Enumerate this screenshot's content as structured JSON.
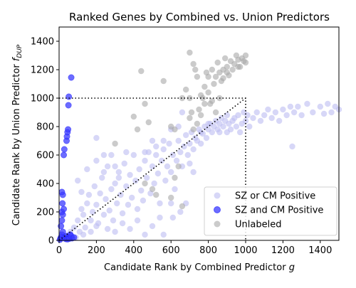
{
  "chart_data": {
    "type": "scatter",
    "title": "Ranked Genes by Combined vs. Union Predictors",
    "xlabel": "Candidate Rank by Combined Predictor g",
    "xlabel_text": "Candidate Rank by Combined Predictor ",
    "xlabel_var": "g",
    "ylabel": "Candidate Rank by Union Predictor f_DUP",
    "ylabel_text": "Candidate Rank by Union Predictor ",
    "ylabel_var": "f",
    "ylabel_sub": "DUP",
    "xlim": [
      0,
      1500
    ],
    "ylim": [
      0,
      1500
    ],
    "xticks": [
      0,
      200,
      400,
      600,
      800,
      1000,
      1200,
      1400
    ],
    "yticks": [
      0,
      200,
      400,
      600,
      800,
      1000,
      1200,
      1400
    ],
    "grid": false,
    "legend_position": "lower-right",
    "dotted_box": {
      "x": [
        0,
        1000
      ],
      "y": [
        0,
        1000
      ]
    },
    "dotted_diagonal": {
      "x": [
        0,
        1000
      ],
      "y": [
        0,
        1000
      ]
    },
    "series": [
      {
        "name": "SZ or CM Positive",
        "color": "#bcbcf2",
        "points": [
          [
            60,
            60
          ],
          [
            80,
            90
          ],
          [
            100,
            140
          ],
          [
            110,
            60
          ],
          [
            120,
            220
          ],
          [
            130,
            180
          ],
          [
            140,
            90
          ],
          [
            150,
            260
          ],
          [
            160,
            320
          ],
          [
            170,
            140
          ],
          [
            180,
            200
          ],
          [
            190,
            380
          ],
          [
            200,
            250
          ],
          [
            210,
            120
          ],
          [
            220,
            330
          ],
          [
            230,
            440
          ],
          [
            240,
            180
          ],
          [
            250,
            290
          ],
          [
            260,
            520
          ],
          [
            270,
            210
          ],
          [
            280,
            360
          ],
          [
            290,
            140
          ],
          [
            300,
            400
          ],
          [
            310,
            260
          ],
          [
            320,
            480
          ],
          [
            330,
            320
          ],
          [
            340,
            190
          ],
          [
            350,
            540
          ],
          [
            360,
            380
          ],
          [
            370,
            250
          ],
          [
            380,
            460
          ],
          [
            390,
            300
          ],
          [
            400,
            600
          ],
          [
            410,
            420
          ],
          [
            420,
            220
          ],
          [
            430,
            500
          ],
          [
            440,
            350
          ],
          [
            450,
            280
          ],
          [
            460,
            560
          ],
          [
            470,
            440
          ],
          [
            480,
            620
          ],
          [
            490,
            330
          ],
          [
            500,
            520
          ],
          [
            510,
            400
          ],
          [
            520,
            600
          ],
          [
            530,
            470
          ],
          [
            540,
            260
          ],
          [
            550,
            560
          ],
          [
            560,
            640
          ],
          [
            570,
            420
          ],
          [
            580,
            520
          ],
          [
            590,
            680
          ],
          [
            600,
            480
          ],
          [
            610,
            600
          ],
          [
            620,
            360
          ],
          [
            630,
            560
          ],
          [
            640,
            700
          ],
          [
            650,
            620
          ],
          [
            660,
            520
          ],
          [
            670,
            660
          ],
          [
            680,
            740
          ],
          [
            690,
            600
          ],
          [
            700,
            680
          ],
          [
            710,
            760
          ],
          [
            720,
            640
          ],
          [
            730,
            720
          ],
          [
            740,
            700
          ],
          [
            750,
            780
          ],
          [
            760,
            680
          ],
          [
            770,
            750
          ],
          [
            780,
            800
          ],
          [
            790,
            720
          ],
          [
            800,
            780
          ],
          [
            810,
            820
          ],
          [
            820,
            760
          ],
          [
            830,
            800
          ],
          [
            840,
            840
          ],
          [
            850,
            780
          ],
          [
            860,
            820
          ],
          [
            870,
            860
          ],
          [
            880,
            800
          ],
          [
            890,
            840
          ],
          [
            900,
            880
          ],
          [
            910,
            820
          ],
          [
            920,
            780
          ],
          [
            930,
            840
          ],
          [
            940,
            860
          ],
          [
            950,
            800
          ],
          [
            960,
            880
          ],
          [
            970,
            760
          ],
          [
            980,
            820
          ],
          [
            990,
            900
          ],
          [
            1000,
            840
          ],
          [
            1010,
            880
          ],
          [
            1020,
            800
          ],
          [
            1040,
            860
          ],
          [
            1060,
            900
          ],
          [
            1080,
            840
          ],
          [
            1100,
            880
          ],
          [
            1120,
            920
          ],
          [
            1140,
            860
          ],
          [
            1160,
            900
          ],
          [
            1180,
            840
          ],
          [
            1200,
            920
          ],
          [
            1220,
            880
          ],
          [
            1240,
            940
          ],
          [
            1250,
            660
          ],
          [
            1260,
            900
          ],
          [
            1280,
            940
          ],
          [
            1300,
            880
          ],
          [
            1330,
            960
          ],
          [
            1360,
            900
          ],
          [
            1400,
            940
          ],
          [
            1420,
            890
          ],
          [
            1440,
            960
          ],
          [
            1460,
            900
          ],
          [
            1480,
            940
          ],
          [
            1500,
            920
          ],
          [
            40,
            30
          ],
          [
            90,
            20
          ],
          [
            130,
            40
          ],
          [
            170,
            60
          ],
          [
            200,
            100
          ],
          [
            260,
            80
          ],
          [
            300,
            60
          ],
          [
            340,
            120
          ],
          [
            380,
            80
          ],
          [
            420,
            140
          ],
          [
            460,
            40
          ],
          [
            500,
            100
          ],
          [
            540,
            160
          ],
          [
            560,
            40
          ],
          [
            600,
            260
          ],
          [
            610,
            160
          ],
          [
            650,
            200
          ],
          [
            680,
            260
          ],
          [
            200,
            560
          ],
          [
            240,
            600
          ],
          [
            280,
            600
          ],
          [
            240,
            480
          ],
          [
            300,
            520
          ],
          [
            360,
            620
          ],
          [
            320,
            440
          ],
          [
            150,
            500
          ],
          [
            100,
            420
          ],
          [
            120,
            340
          ],
          [
            600,
            780
          ],
          [
            640,
            800
          ],
          [
            660,
            900
          ],
          [
            560,
            700
          ],
          [
            520,
            660
          ],
          [
            500,
            700
          ],
          [
            460,
            620
          ],
          [
            720,
            480
          ],
          [
            700,
            540
          ],
          [
            200,
            720
          ],
          [
            760,
            760
          ],
          [
            800,
            820
          ],
          [
            860,
            760
          ],
          [
            900,
            760
          ]
        ]
      },
      {
        "name": "SZ and CM Positive",
        "color": "#3b3bff",
        "points": [
          [
            5,
            5
          ],
          [
            8,
            15
          ],
          [
            12,
            25
          ],
          [
            15,
            40
          ],
          [
            20,
            60
          ],
          [
            10,
            100
          ],
          [
            15,
            140
          ],
          [
            20,
            180
          ],
          [
            15,
            200
          ],
          [
            25,
            220
          ],
          [
            18,
            260
          ],
          [
            20,
            320
          ],
          [
            15,
            340
          ],
          [
            25,
            600
          ],
          [
            28,
            640
          ],
          [
            40,
            700
          ],
          [
            42,
            730
          ],
          [
            45,
            760
          ],
          [
            48,
            780
          ],
          [
            50,
            950
          ],
          [
            52,
            1010
          ],
          [
            65,
            1145
          ],
          [
            30,
            20
          ],
          [
            35,
            10
          ],
          [
            40,
            30
          ],
          [
            50,
            20
          ],
          [
            60,
            40
          ],
          [
            70,
            15
          ],
          [
            45,
            8
          ],
          [
            55,
            12
          ],
          [
            65,
            30
          ],
          [
            80,
            20
          ]
        ]
      },
      {
        "name": "Unlabeled",
        "color": "#a9a9a9",
        "points": [
          [
            300,
            680
          ],
          [
            400,
            870
          ],
          [
            420,
            780
          ],
          [
            440,
            1190
          ],
          [
            460,
            960
          ],
          [
            480,
            830
          ],
          [
            560,
            1120
          ],
          [
            600,
            800
          ],
          [
            620,
            780
          ],
          [
            660,
            1000
          ],
          [
            680,
            1060
          ],
          [
            700,
            1320
          ],
          [
            710,
            900
          ],
          [
            720,
            1240
          ],
          [
            730,
            1200
          ],
          [
            740,
            1150
          ],
          [
            750,
            920
          ],
          [
            760,
            880
          ],
          [
            770,
            1000
          ],
          [
            780,
            1080
          ],
          [
            790,
            1180
          ],
          [
            800,
            1040
          ],
          [
            810,
            960
          ],
          [
            820,
            1200
          ],
          [
            830,
            1100
          ],
          [
            840,
            1150
          ],
          [
            850,
            1250
          ],
          [
            860,
            1180
          ],
          [
            870,
            1120
          ],
          [
            880,
            1200
          ],
          [
            890,
            1280
          ],
          [
            900,
            1220
          ],
          [
            910,
            1160
          ],
          [
            920,
            1260
          ],
          [
            930,
            1200
          ],
          [
            940,
            1240
          ],
          [
            950,
            1300
          ],
          [
            960,
            1270
          ],
          [
            970,
            1220
          ],
          [
            980,
            1280
          ],
          [
            990,
            1260
          ],
          [
            1000,
            1300
          ],
          [
            1000,
            1250
          ],
          [
            800,
            1150
          ],
          [
            760,
            1020
          ],
          [
            820,
            980
          ],
          [
            840,
            900
          ],
          [
            860,
            1000
          ],
          [
            780,
            960
          ],
          [
            880,
            1140
          ],
          [
            900,
            1180
          ],
          [
            700,
            860
          ],
          [
            720,
            780
          ],
          [
            740,
            820
          ],
          [
            520,
            320
          ],
          [
            640,
            520
          ],
          [
            660,
            240
          ],
          [
            600,
            300
          ],
          [
            460,
            400
          ],
          [
            500,
            360
          ],
          [
            620,
            440
          ],
          [
            700,
            1000
          ],
          [
            960,
            1220
          ]
        ]
      }
    ]
  }
}
